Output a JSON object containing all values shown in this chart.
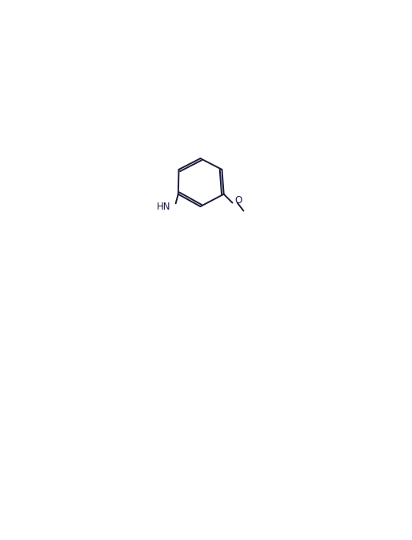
{
  "bg_color": "#ffffff",
  "line_color": "#1a1a3a",
  "line_width": 1.4,
  "font_size": 8.5,
  "font_family": "Arial",
  "figsize": [
    5.15,
    6.75
  ],
  "dpi": 100
}
